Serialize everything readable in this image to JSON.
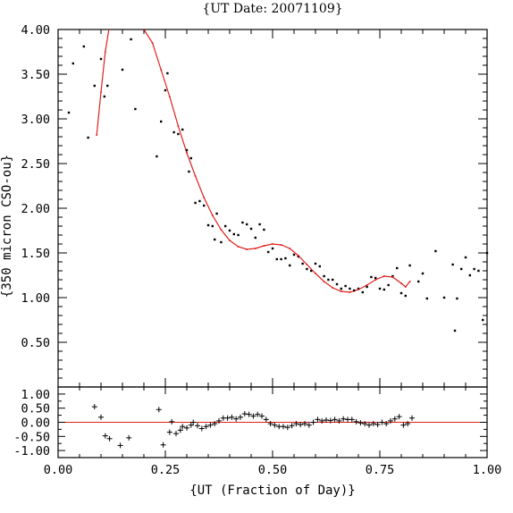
{
  "chart_data": [
    {
      "type": "scatter",
      "panel": "main",
      "title": "{UT Date: 20071109}",
      "ylabel": "{350 micron CSO-ou}",
      "xlim": [
        0.0,
        1.0
      ],
      "ylim": [
        0.0,
        4.0
      ],
      "yticks": [
        "0.50",
        "1.00",
        "1.50",
        "2.00",
        "2.50",
        "3.00",
        "3.50",
        "4.00"
      ],
      "line_color": "#e0201e",
      "series": [
        {
          "points": [
            [
              0.025,
              3.07
            ],
            [
              0.035,
              3.62
            ],
            [
              0.06,
              3.81
            ],
            [
              0.07,
              2.79
            ],
            [
              0.085,
              3.37
            ],
            [
              0.1,
              3.67
            ],
            [
              0.108,
              3.25
            ],
            [
              0.115,
              3.37
            ],
            [
              0.15,
              3.55
            ],
            [
              0.17,
              3.89
            ],
            [
              0.18,
              3.11
            ],
            [
              0.23,
              2.58
            ],
            [
              0.24,
              2.97
            ],
            [
              0.25,
              3.32
            ],
            [
              0.255,
              3.51
            ],
            [
              0.27,
              2.85
            ],
            [
              0.28,
              2.83
            ],
            [
              0.29,
              2.88
            ],
            [
              0.3,
              2.65
            ],
            [
              0.305,
              2.41
            ],
            [
              0.31,
              2.56
            ],
            [
              0.32,
              2.06
            ],
            [
              0.33,
              2.08
            ],
            [
              0.34,
              2.03
            ],
            [
              0.35,
              1.81
            ],
            [
              0.36,
              1.8
            ],
            [
              0.365,
              1.65
            ],
            [
              0.37,
              1.94
            ],
            [
              0.38,
              1.62
            ],
            [
              0.39,
              1.8
            ],
            [
              0.4,
              1.75
            ],
            [
              0.41,
              1.71
            ],
            [
              0.42,
              1.7
            ],
            [
              0.43,
              1.84
            ],
            [
              0.44,
              1.82
            ],
            [
              0.45,
              1.77
            ],
            [
              0.46,
              1.67
            ],
            [
              0.47,
              1.82
            ],
            [
              0.48,
              1.76
            ],
            [
              0.49,
              1.51
            ],
            [
              0.5,
              1.55
            ],
            [
              0.51,
              1.43
            ],
            [
              0.52,
              1.43
            ],
            [
              0.53,
              1.44
            ],
            [
              0.54,
              1.36
            ],
            [
              0.55,
              1.48
            ],
            [
              0.56,
              1.46
            ],
            [
              0.57,
              1.38
            ],
            [
              0.58,
              1.32
            ],
            [
              0.59,
              1.3
            ],
            [
              0.6,
              1.38
            ],
            [
              0.61,
              1.35
            ],
            [
              0.62,
              1.24
            ],
            [
              0.63,
              1.2
            ],
            [
              0.64,
              1.2
            ],
            [
              0.65,
              1.15
            ],
            [
              0.66,
              1.1
            ],
            [
              0.67,
              1.13
            ],
            [
              0.68,
              1.1
            ],
            [
              0.69,
              1.08
            ],
            [
              0.7,
              1.1
            ],
            [
              0.71,
              1.06
            ],
            [
              0.72,
              1.12
            ],
            [
              0.73,
              1.23
            ],
            [
              0.74,
              1.22
            ],
            [
              0.75,
              1.1
            ],
            [
              0.76,
              1.09
            ],
            [
              0.77,
              1.14
            ],
            [
              0.78,
              1.24
            ],
            [
              0.79,
              1.33
            ],
            [
              0.8,
              1.05
            ],
            [
              0.81,
              1.02
            ],
            [
              0.82,
              1.36
            ],
            [
              0.84,
              1.18
            ],
            [
              0.85,
              1.27
            ],
            [
              0.86,
              0.99
            ],
            [
              0.88,
              1.52
            ],
            [
              0.9,
              1.0
            ],
            [
              0.92,
              1.37
            ],
            [
              0.925,
              0.63
            ],
            [
              0.93,
              0.99
            ],
            [
              0.94,
              1.32
            ],
            [
              0.95,
              1.45
            ],
            [
              0.96,
              1.25
            ],
            [
              0.97,
              1.32
            ],
            [
              0.98,
              1.3
            ],
            [
              0.99,
              0.75
            ],
            [
              1.0,
              1.5
            ]
          ],
          "fit": [
            [
              0.09,
              2.82
            ],
            [
              0.1,
              3.3
            ],
            [
              0.11,
              3.75
            ],
            [
              0.12,
              4.05
            ],
            [
              0.13,
              4.35
            ],
            [
              0.2,
              4.0
            ],
            [
              0.22,
              3.85
            ],
            [
              0.24,
              3.55
            ],
            [
              0.26,
              3.25
            ],
            [
              0.28,
              2.92
            ],
            [
              0.3,
              2.62
            ],
            [
              0.32,
              2.36
            ],
            [
              0.34,
              2.12
            ],
            [
              0.36,
              1.92
            ],
            [
              0.38,
              1.76
            ],
            [
              0.4,
              1.64
            ],
            [
              0.42,
              1.57
            ],
            [
              0.44,
              1.54
            ],
            [
              0.46,
              1.55
            ],
            [
              0.48,
              1.58
            ],
            [
              0.5,
              1.6
            ],
            [
              0.52,
              1.59
            ],
            [
              0.54,
              1.55
            ],
            [
              0.56,
              1.47
            ],
            [
              0.58,
              1.37
            ],
            [
              0.6,
              1.27
            ],
            [
              0.62,
              1.18
            ],
            [
              0.64,
              1.11
            ],
            [
              0.66,
              1.07
            ],
            [
              0.68,
              1.06
            ],
            [
              0.7,
              1.09
            ],
            [
              0.72,
              1.14
            ],
            [
              0.74,
              1.2
            ],
            [
              0.76,
              1.24
            ],
            [
              0.78,
              1.23
            ],
            [
              0.8,
              1.16
            ],
            [
              0.81,
              1.12
            ],
            [
              0.82,
              1.18
            ]
          ]
        }
      ]
    },
    {
      "type": "scatter",
      "panel": "residuals",
      "xlabel": "{UT (Fraction of Day)}",
      "xlim": [
        0.0,
        1.0
      ],
      "ylim": [
        -1.25,
        1.25
      ],
      "xticks": [
        "0.00",
        "0.25",
        "0.50",
        "0.75",
        "1.00"
      ],
      "yticks": [
        "1.00",
        "0.50",
        "0.00",
        "-0.50",
        "-1.00"
      ],
      "zero_line_color": "#e0201e",
      "series": [
        {
          "points": [
            [
              0.085,
              0.55
            ],
            [
              0.1,
              0.18
            ],
            [
              0.11,
              -0.48
            ],
            [
              0.12,
              -0.58
            ],
            [
              0.145,
              -0.82
            ],
            [
              0.165,
              -0.55
            ],
            [
              0.235,
              0.45
            ],
            [
              0.245,
              -0.8
            ],
            [
              0.26,
              -0.35
            ],
            [
              0.265,
              0.02
            ],
            [
              0.275,
              -0.4
            ],
            [
              0.285,
              -0.28
            ],
            [
              0.29,
              -0.15
            ],
            [
              0.3,
              -0.2
            ],
            [
              0.31,
              -0.1
            ],
            [
              0.315,
              0.0
            ],
            [
              0.325,
              -0.12
            ],
            [
              0.335,
              -0.22
            ],
            [
              0.345,
              -0.15
            ],
            [
              0.355,
              -0.1
            ],
            [
              0.365,
              -0.05
            ],
            [
              0.375,
              0.05
            ],
            [
              0.385,
              0.15
            ],
            [
              0.395,
              0.15
            ],
            [
              0.405,
              0.18
            ],
            [
              0.415,
              0.12
            ],
            [
              0.425,
              0.18
            ],
            [
              0.435,
              0.3
            ],
            [
              0.445,
              0.28
            ],
            [
              0.455,
              0.22
            ],
            [
              0.465,
              0.28
            ],
            [
              0.475,
              0.22
            ],
            [
              0.485,
              0.1
            ],
            [
              0.495,
              -0.05
            ],
            [
              0.505,
              -0.1
            ],
            [
              0.515,
              -0.15
            ],
            [
              0.525,
              -0.15
            ],
            [
              0.535,
              -0.18
            ],
            [
              0.545,
              -0.12
            ],
            [
              0.555,
              -0.05
            ],
            [
              0.565,
              -0.08
            ],
            [
              0.575,
              -0.05
            ],
            [
              0.585,
              -0.1
            ],
            [
              0.595,
              0.0
            ],
            [
              0.605,
              0.1
            ],
            [
              0.615,
              0.05
            ],
            [
              0.625,
              0.08
            ],
            [
              0.635,
              0.06
            ],
            [
              0.645,
              0.1
            ],
            [
              0.655,
              0.05
            ],
            [
              0.665,
              0.12
            ],
            [
              0.675,
              0.1
            ],
            [
              0.685,
              0.1
            ],
            [
              0.695,
              0.02
            ],
            [
              0.705,
              -0.02
            ],
            [
              0.715,
              -0.05
            ],
            [
              0.725,
              -0.1
            ],
            [
              0.735,
              -0.05
            ],
            [
              0.745,
              -0.08
            ],
            [
              0.755,
              0.0
            ],
            [
              0.765,
              -0.05
            ],
            [
              0.775,
              0.05
            ],
            [
              0.785,
              0.12
            ],
            [
              0.795,
              0.2
            ],
            [
              0.805,
              -0.1
            ],
            [
              0.815,
              -0.05
            ],
            [
              0.825,
              0.15
            ]
          ]
        }
      ]
    }
  ]
}
